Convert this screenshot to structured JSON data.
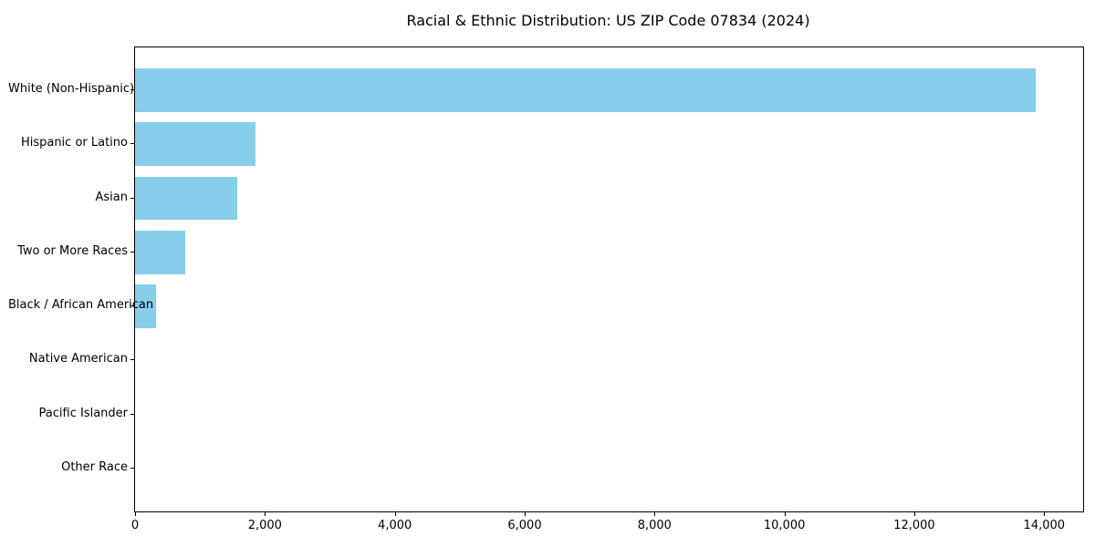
{
  "chart_data": {
    "type": "bar",
    "orientation": "horizontal",
    "title": "Racial & Ethnic Distribution: US ZIP Code 07834 (2024)",
    "categories": [
      "White (Non-Hispanic)",
      "Hispanic or Latino",
      "Asian",
      "Two or More Races",
      "Black / African American",
      "Native American",
      "Pacific Islander",
      "Other Race"
    ],
    "values": [
      13870,
      1860,
      1570,
      775,
      320,
      0,
      0,
      0
    ],
    "xlabel": "",
    "ylabel": "",
    "xlim": [
      0,
      14600
    ],
    "x_ticks": [
      {
        "value": 0,
        "label": "0"
      },
      {
        "value": 2000,
        "label": "2,000"
      },
      {
        "value": 4000,
        "label": "4,000"
      },
      {
        "value": 6000,
        "label": "6,000"
      },
      {
        "value": 8000,
        "label": "8,000"
      },
      {
        "value": 10000,
        "label": "10,000"
      },
      {
        "value": 12000,
        "label": "12,000"
      },
      {
        "value": 14000,
        "label": "14,000"
      }
    ],
    "bar_color": "#87CEEB",
    "grid": false,
    "legend": null
  }
}
